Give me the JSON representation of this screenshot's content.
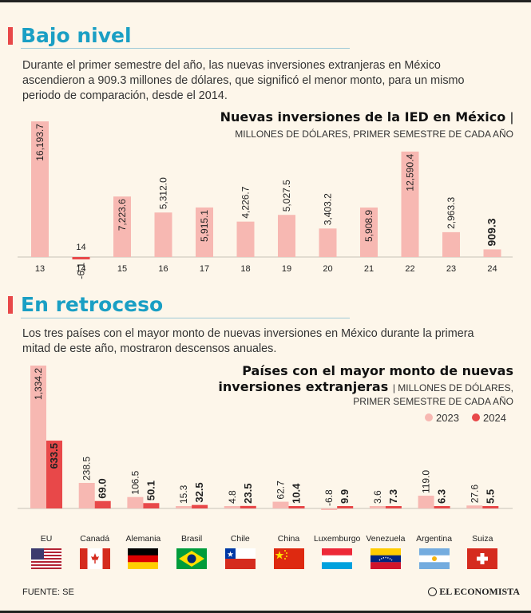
{
  "section1": {
    "title": "Bajo nivel",
    "paragraph_lines": [
      "Durante el primer semestre del año, las nuevas inversiones extranjeras en México",
      "ascendieron a 909.3 millones de dólares, que significó el menor monto, para un mismo",
      "periodo de comparación, desde el 2014."
    ]
  },
  "section2": {
    "title": "En retroceso",
    "paragraph_lines": [
      "Los tres países con el mayor monto de nuevas inversiones en México durante la primera",
      "mitad de este año, mostraron descensos anuales."
    ]
  },
  "colors": {
    "bar_light": "#f7b8b2",
    "bar_dark": "#e84849",
    "title_blue": "#1a9fc4",
    "accent_red": "#e84849"
  },
  "chart_data": [
    {
      "type": "bar",
      "title": "Nuevas inversiones de la IED en México",
      "title_sep": "|",
      "subtitle": "MILLONES DE DÓLARES, PRIMER SEMESTRE DE CADA AÑO",
      "categories": [
        "13",
        "14",
        "15",
        "16",
        "17",
        "18",
        "19",
        "20",
        "21",
        "22",
        "23",
        "24"
      ],
      "values": [
        16193.7,
        -6.1,
        7223.6,
        5312.0,
        5915.1,
        4226.7,
        5027.5,
        3403.2,
        5908.9,
        12590.4,
        2963.3,
        909.3
      ],
      "value_labels": [
        "16,193.7",
        "-6.1",
        "7,223.6",
        "5,312.0",
        "5,915.1",
        "4,226.7",
        "5,027.5",
        "3,403.2",
        "5,908.9",
        "12,590.4",
        "2,963.3",
        "909.3"
      ],
      "highlight_index": 11,
      "ylim": [
        -500,
        16500
      ]
    },
    {
      "type": "bar",
      "title_line1": "Países con el mayor monto de nuevas",
      "title_line2": "inversiones extranjeras",
      "subtitle_line1": "| MILLONES DE DÓLARES,",
      "subtitle_line2": "PRIMER SEMESTRE DE CADA AÑO",
      "categories": [
        "EU",
        "Canadá",
        "Alemania",
        "Brasil",
        "Chile",
        "China",
        "Luxemburgo",
        "Venezuela",
        "Argentina",
        "Suiza"
      ],
      "flags": [
        "us-flag-icon",
        "canada-flag-icon",
        "germany-flag-icon",
        "brazil-flag-icon",
        "chile-flag-icon",
        "china-flag-icon",
        "luxembourg-flag-icon",
        "venezuela-flag-icon",
        "argentina-flag-icon",
        "switzerland-flag-icon"
      ],
      "series": [
        {
          "name": "2023",
          "values": [
            1334.2,
            238.5,
            106.5,
            15.3,
            4.8,
            62.7,
            -6.8,
            3.6,
            119.0,
            27.6
          ],
          "labels": [
            "1,334.2",
            "238.5",
            "106.5",
            "15.3",
            "4.8",
            "62.7",
            "-6.8",
            "3.6",
            "119.0",
            "27.6"
          ]
        },
        {
          "name": "2024",
          "values": [
            633.5,
            69.0,
            50.1,
            32.5,
            23.5,
            10.4,
            9.9,
            7.3,
            6.3,
            5.5
          ],
          "labels": [
            "633.5",
            "69.0",
            "50.1",
            "32.5",
            "23.5",
            "10.4",
            "9.9",
            "7.3",
            "6.3",
            "5.5"
          ]
        }
      ],
      "ylim": [
        0,
        1334.2
      ]
    }
  ],
  "footer": {
    "source": "FUENTE: SE",
    "brand": "EL ECONOMISTA"
  }
}
